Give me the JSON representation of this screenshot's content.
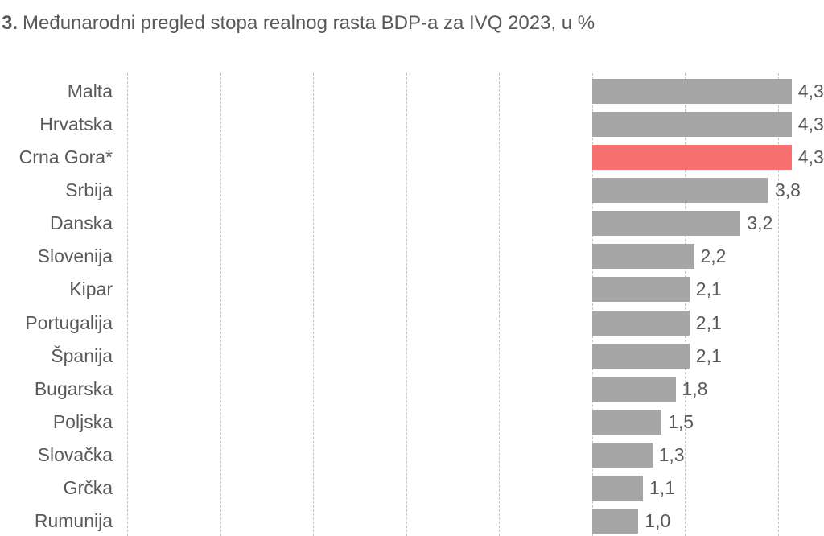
{
  "title": {
    "prefix": "3.",
    "text": "Međunarodni pregled stopa realnog rasta BDP-a za IVQ 2023, u %"
  },
  "colors": {
    "bar": "#a6a6a6",
    "highlight_bar": "#f97070",
    "text": "#595959",
    "gridline": "#c5c5c5",
    "background": "#ffffff"
  },
  "chart_data": {
    "type": "bar",
    "orientation": "horizontal",
    "title": "3. Međunarodni pregled stopa realnog rasta BDP-a za IVQ 2023, u %",
    "xlabel": "",
    "ylabel": "",
    "categories": [
      "Malta",
      "Hrvatska",
      "Crna Gora*",
      "Srbija",
      "Danska",
      "Slovenija",
      "Kipar",
      "Portugalija",
      "Španija",
      "Bugarska",
      "Poljska",
      "Slovačka",
      "Grčka",
      "Rumunija"
    ],
    "values": [
      4.3,
      4.3,
      4.3,
      3.8,
      3.2,
      2.2,
      2.1,
      2.1,
      2.1,
      1.8,
      1.5,
      1.3,
      1.1,
      1.0
    ],
    "display_values": [
      "4,3",
      "4,3",
      "4,3",
      "3,8",
      "3,2",
      "2,2",
      "2,1",
      "2,1",
      "2,1",
      "1,8",
      "1,5",
      "1,3",
      "1,1",
      "1,0"
    ],
    "highlight_index": 2,
    "highlight_category": "Crna Gora*",
    "grid": true,
    "x_gridline_values": [
      -10,
      -8,
      -6,
      -4,
      -2,
      0,
      2,
      4
    ],
    "x_gridline_step": 2,
    "decimal_separator": ","
  }
}
